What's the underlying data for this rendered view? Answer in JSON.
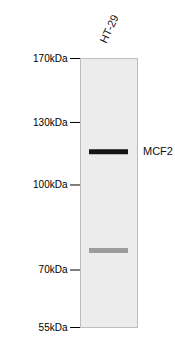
{
  "chart_data": {
    "type": "blot",
    "lanes": [
      "HT-29"
    ],
    "log": "y",
    "ylim": [
      55,
      170
    ],
    "yticks": [
      {
        "value": 170,
        "label": "170kDa"
      },
      {
        "value": 130,
        "label": "130kDa"
      },
      {
        "value": 100,
        "label": "100kDa"
      },
      {
        "value": 70,
        "label": "70kDa"
      },
      {
        "value": 55,
        "label": "55kDa"
      }
    ],
    "bands": [
      {
        "lane": "HT-29",
        "value": 115,
        "label": "MCF2"
      },
      {
        "lane": "HT-29",
        "value": 76
      }
    ],
    "colors": [
      "#141414",
      "#9c9c9c"
    ]
  }
}
